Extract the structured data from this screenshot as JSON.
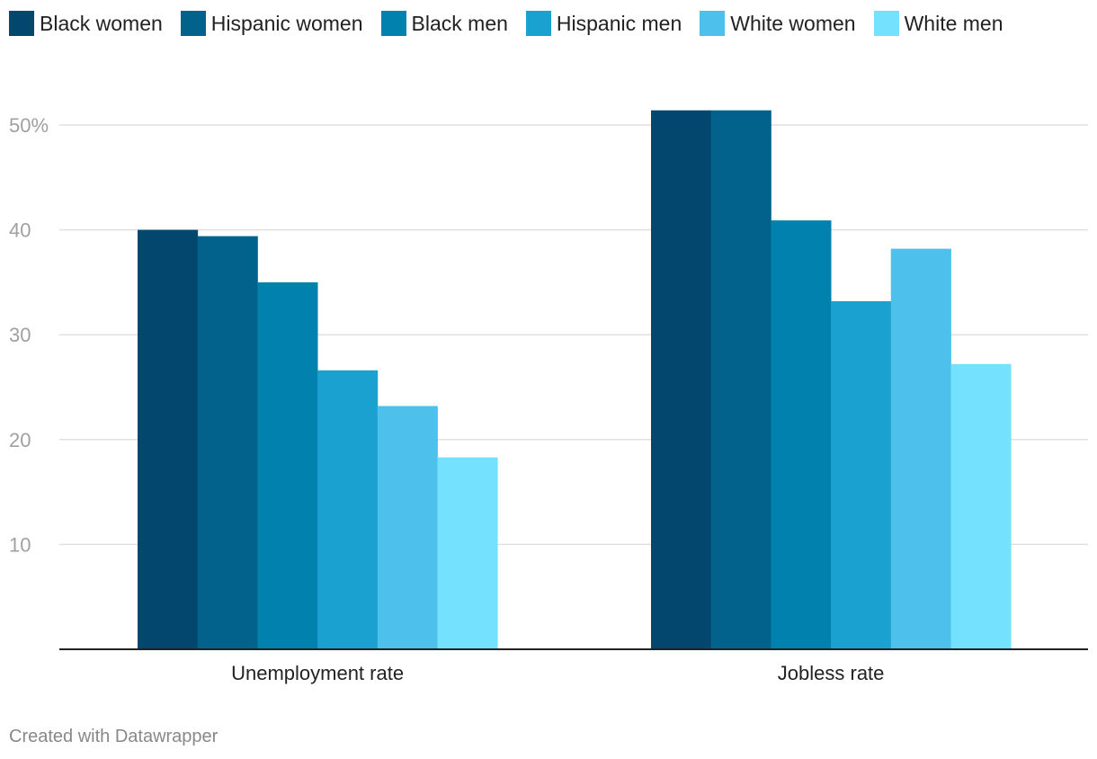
{
  "chart_data": {
    "type": "bar",
    "title": "",
    "xlabel": "",
    "ylabel": "",
    "categories": [
      "Unemployment rate",
      "Jobless rate"
    ],
    "series": [
      {
        "name": "Black women",
        "color": "#03476e",
        "values": [
          40.0,
          51.4
        ]
      },
      {
        "name": "Hispanic women",
        "color": "#02628c",
        "values": [
          39.4,
          51.4
        ]
      },
      {
        "name": "Black men",
        "color": "#0181ae",
        "values": [
          35.0,
          40.9
        ]
      },
      {
        "name": "Hispanic men",
        "color": "#1aa1cf",
        "values": [
          26.6,
          33.2
        ]
      },
      {
        "name": "White women",
        "color": "#4dc1ec",
        "values": [
          23.2,
          38.2
        ]
      },
      {
        "name": "White men",
        "color": "#74e1ff",
        "values": [
          18.3,
          27.2
        ]
      }
    ],
    "ylim": [
      0,
      50
    ],
    "yticks": [
      10,
      20,
      30,
      40,
      50
    ],
    "ytick_labels": [
      "10",
      "20",
      "30",
      "40",
      "50%"
    ],
    "grid": true,
    "legend_position": "top-left"
  },
  "footer": {
    "credit": "Created with Datawrapper"
  },
  "colors": {
    "gridline": "#e0e0e0",
    "baseline": "#222222",
    "tick_label": "#a0a0a0",
    "category_label": "#222222"
  }
}
